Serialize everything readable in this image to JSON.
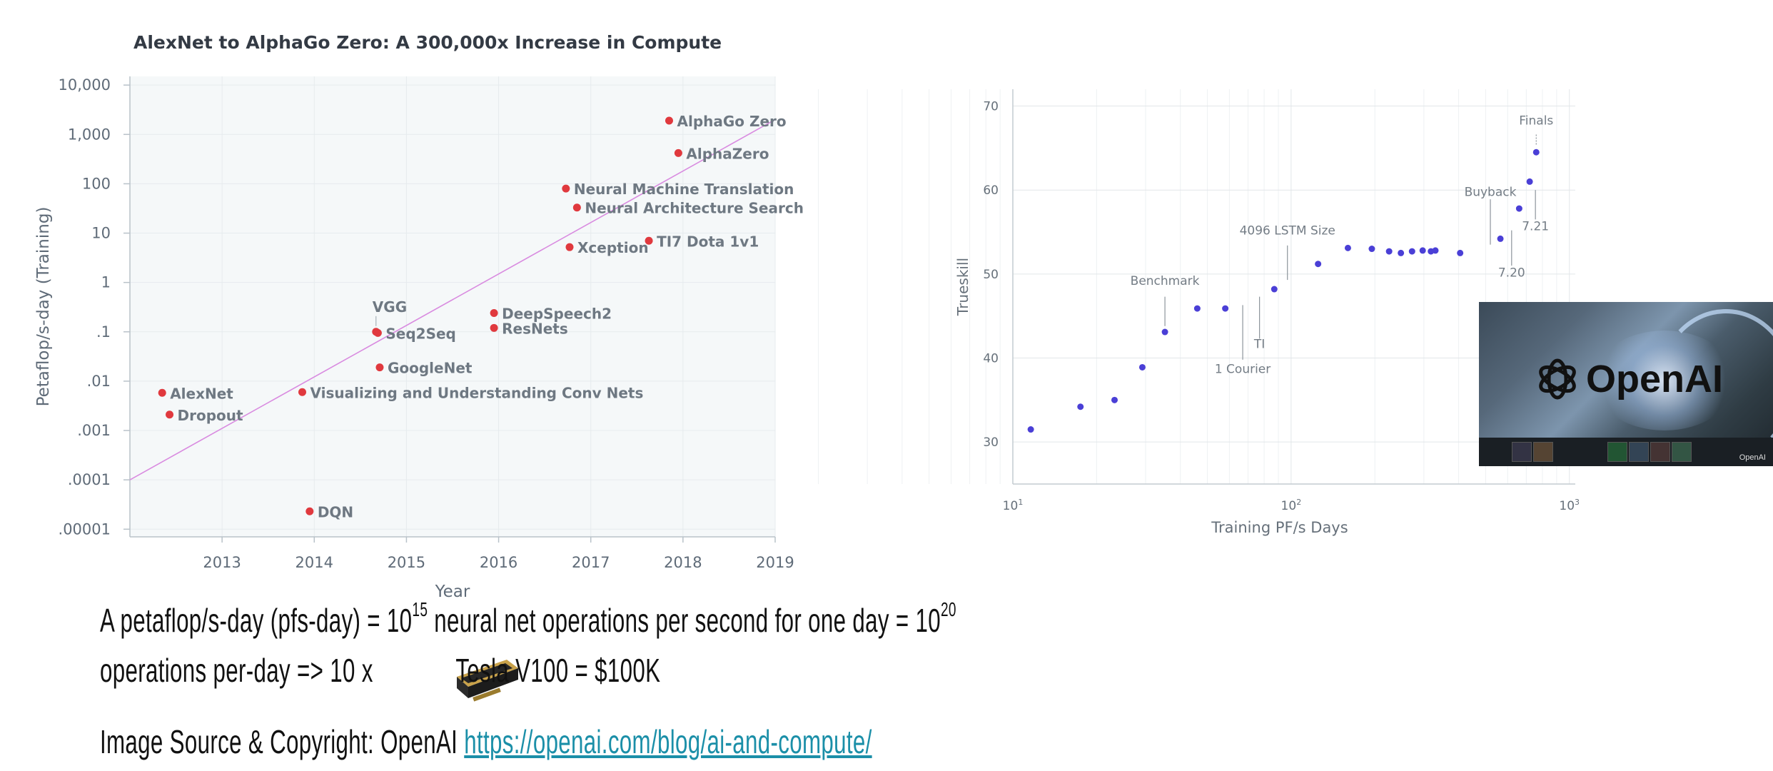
{
  "chart_data": [
    {
      "type": "scatter",
      "title": "AlexNet to AlphaGo Zero: A 300,000x Increase in Compute",
      "xlabel": "Year",
      "ylabel": "Petaflop/s-day (Training)",
      "xlim": [
        2012.0,
        2019.0
      ],
      "ylim": [
        7e-06,
        15000
      ],
      "y_scale": "log",
      "grid": true,
      "x_ticks": [
        {
          "value": 2013,
          "label": "2013"
        },
        {
          "value": 2014,
          "label": "2014"
        },
        {
          "value": 2015,
          "label": "2015"
        },
        {
          "value": 2016,
          "label": "2016"
        },
        {
          "value": 2017,
          "label": "2017"
        },
        {
          "value": 2018,
          "label": "2018"
        },
        {
          "value": 2019,
          "label": "2019"
        }
      ],
      "y_ticks": [
        {
          "value": 10000,
          "label": "10,000"
        },
        {
          "value": 1000,
          "label": "1,000"
        },
        {
          "value": 100,
          "label": "100"
        },
        {
          "value": 10,
          "label": "10"
        },
        {
          "value": 1,
          "label": "1"
        },
        {
          "value": 0.1,
          "label": ".1"
        },
        {
          "value": 0.01,
          "label": ".01"
        },
        {
          "value": 0.001,
          "label": ".001"
        },
        {
          "value": 0.0001,
          "label": ".0001"
        },
        {
          "value": 1e-05,
          "label": ".00001"
        }
      ],
      "trend_line": {
        "x": [
          2012.0,
          2019.0
        ],
        "y": [
          0.0001,
          2000
        ]
      },
      "points": [
        {
          "label": "AlexNet",
          "x": 2012.35,
          "y": 0.0058
        },
        {
          "label": "Dropout",
          "x": 2012.43,
          "y": 0.0021
        },
        {
          "label": "DQN",
          "x": 2013.95,
          "y": 2.3e-05
        },
        {
          "label": "Visualizing and Understanding Conv Nets",
          "x": 2013.87,
          "y": 0.006
        },
        {
          "label": "VGG",
          "x": 2014.67,
          "y": 0.1,
          "label_pos": "above"
        },
        {
          "label": "Seq2Seq",
          "x": 2014.69,
          "y": 0.095
        },
        {
          "label": "GoogleNet",
          "x": 2014.71,
          "y": 0.019
        },
        {
          "label": "DeepSpeech2",
          "x": 2015.95,
          "y": 0.24
        },
        {
          "label": "ResNets",
          "x": 2015.95,
          "y": 0.12
        },
        {
          "label": "Neural Machine Translation",
          "x": 2016.73,
          "y": 80
        },
        {
          "label": "Neural Architecture Search",
          "x": 2016.85,
          "y": 33
        },
        {
          "label": "Xception",
          "x": 2016.77,
          "y": 5.2
        },
        {
          "label": "TI7 Dota 1v1",
          "x": 2017.63,
          "y": 7
        },
        {
          "label": "AlphaGo Zero",
          "x": 2017.85,
          "y": 1900
        },
        {
          "label": "AlphaZero",
          "x": 2017.95,
          "y": 420
        }
      ]
    },
    {
      "type": "scatter",
      "title": "",
      "xlabel": "Training PF/s Days",
      "ylabel": "Trueskill",
      "x_scale": "log",
      "xlim": [
        10,
        1050
      ],
      "ylim": [
        25,
        72
      ],
      "grid": true,
      "x_ticks": [
        {
          "value": 10,
          "base": "10",
          "exp": "1"
        },
        {
          "value": 100,
          "base": "10",
          "exp": "2"
        },
        {
          "value": 1000,
          "base": "10",
          "exp": "3"
        }
      ],
      "y_ticks": [
        30,
        40,
        50,
        60,
        70
      ],
      "points": [
        {
          "x": 11.6,
          "y": 31.5
        },
        {
          "x": 17.5,
          "y": 34.2
        },
        {
          "x": 23.2,
          "y": 35
        },
        {
          "x": 29.2,
          "y": 38.9
        },
        {
          "x": 35.2,
          "y": 43.1
        },
        {
          "x": 46,
          "y": 45.9
        },
        {
          "x": 58,
          "y": 45.9
        },
        {
          "x": 87,
          "y": 48.2
        },
        {
          "x": 125,
          "y": 51.2
        },
        {
          "x": 160,
          "y": 53.1
        },
        {
          "x": 195,
          "y": 53
        },
        {
          "x": 225,
          "y": 52.7
        },
        {
          "x": 248,
          "y": 52.5
        },
        {
          "x": 272,
          "y": 52.7
        },
        {
          "x": 297,
          "y": 52.8
        },
        {
          "x": 318,
          "y": 52.7
        },
        {
          "x": 330,
          "y": 52.8
        },
        {
          "x": 405,
          "y": 52.5
        },
        {
          "x": 565,
          "y": 54.2
        },
        {
          "x": 660,
          "y": 57.8
        },
        {
          "x": 720,
          "y": 61
        },
        {
          "x": 760,
          "y": 64.5
        }
      ],
      "annotations": [
        {
          "text": "Benchmark",
          "x": 35.2,
          "label_y": 48.7,
          "line_from": 47.3,
          "line_to": 43.8
        },
        {
          "text": "4096 LSTM Size",
          "x": 97,
          "label_y": 54.7,
          "line_from": 53.4,
          "line_to": 49.3
        },
        {
          "text": "TI",
          "x": 77,
          "label_y": 41.2,
          "line_from": 47.3,
          "line_to": 42.3
        },
        {
          "text": "1 Courier",
          "x": 67,
          "label_y": 38.2,
          "line_from": 46.3,
          "line_to": 39.8
        },
        {
          "text": "Buyback",
          "x": 520,
          "label_y": 59.3,
          "line_from": 58.9,
          "line_to": 53.5
        },
        {
          "text": "7.20",
          "x": 620,
          "label_y": 49.7,
          "line_from": 55.2,
          "line_to": 51
        },
        {
          "text": "7.21",
          "x": 755,
          "label_y": 55.2,
          "line_from": 60,
          "line_to": 56.5
        },
        {
          "text": "Finals",
          "x": 760,
          "label_y": 67.8,
          "line_from": 66.6,
          "line_to": 65.3
        }
      ]
    }
  ],
  "caption": {
    "line1_a": "A petaflop/s-day (pfs-day) = 10",
    "line1_sup1": "15",
    "line1_b": " neural net operations per second for one day = 10",
    "line1_sup2": "20",
    "line2_a": "operations per-day => 10 x",
    "line2_b": "Tesla V100 = $100K",
    "source_label": "Image Source & Copyright: OpenAI ",
    "source_link": "https://openai.com/blog/ai-and-compute/"
  },
  "image_overlay": {
    "brand": "OpenAI",
    "brand_small": "OpenAI"
  },
  "colors": {
    "left_point": "#e0393e",
    "right_point": "#4a3fd6",
    "trend_line": "#d98be0",
    "grid": "#e6ebee",
    "plot_bg": "#f5f8f9",
    "link": "#1b8fa8"
  }
}
